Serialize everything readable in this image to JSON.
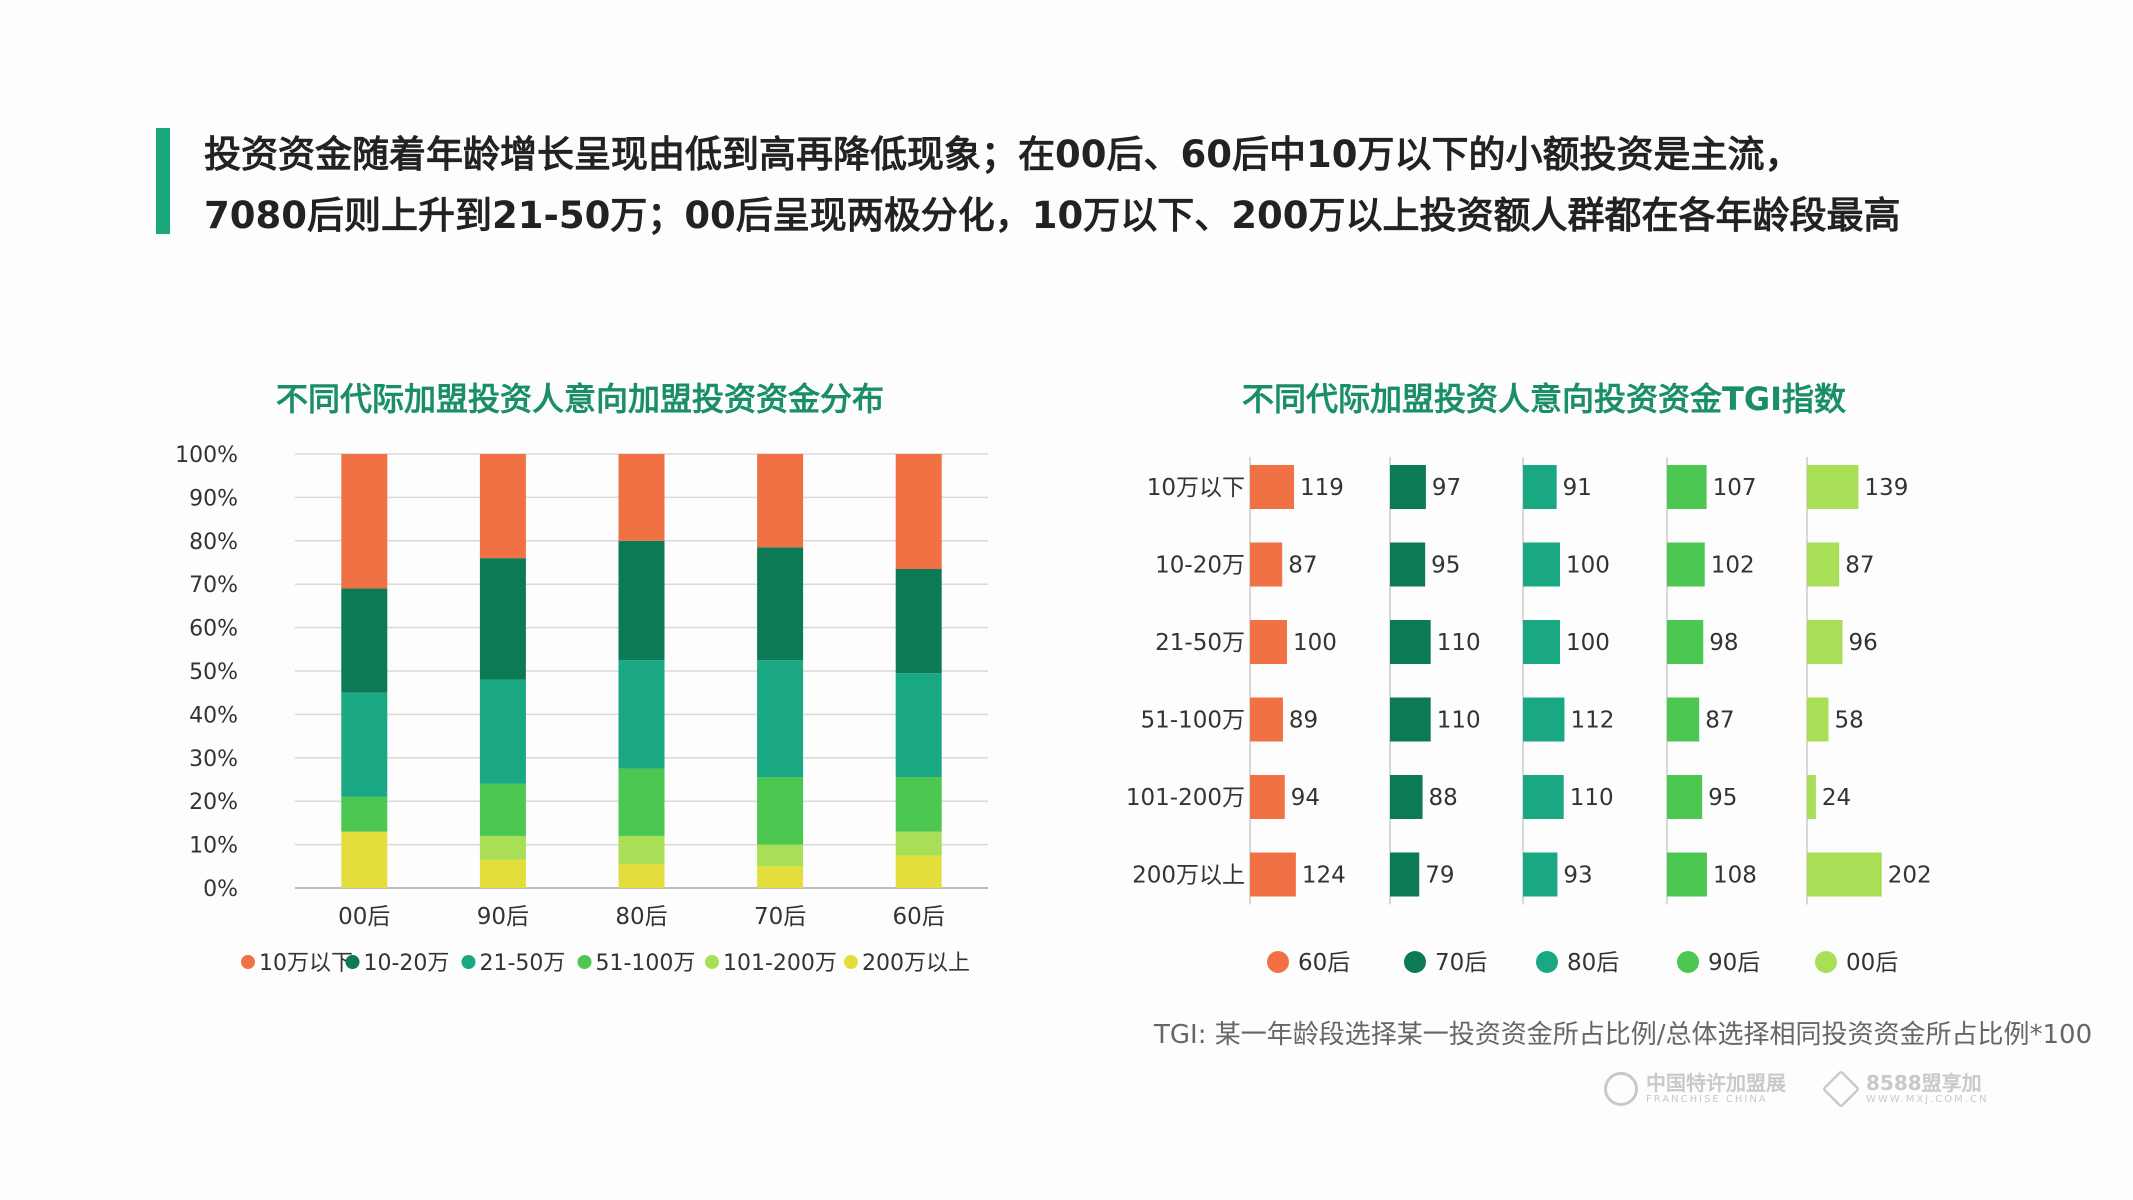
{
  "headline": {
    "line1": "投资资金随着年龄增长呈现由低到高再降低现象；在00后、60后中10万以下的小额投资是主流，",
    "line2": "7080后则上升到21-50万；00后呈现两极分化，10万以下、200万以上投资额人群都在各年龄段最高"
  },
  "footnote": "TGI: 某一年龄段选择某一投资资金所占比例/总体选择相同投资资金所占比例*100",
  "logos": {
    "left": {
      "cn": "中国特许加盟展",
      "en": "FRANCHISE CHINA"
    },
    "right": {
      "cn": "8588盟享加",
      "en": "WWW.MXJ.COM.CN"
    }
  },
  "colors": {
    "10万以下": "#f07144",
    "10-20万": "#0b7a55",
    "21-50万": "#19a881",
    "51-100万": "#4cc751",
    "101-200万": "#a8df57",
    "200万以上": "#e3de3b",
    "title": "#1a8f66"
  },
  "chart_data": [
    {
      "type": "bar",
      "stacked": true,
      "title": "不同代际加盟投资人意向加盟投资资金分布",
      "categories": [
        "00后",
        "90后",
        "80后",
        "70后",
        "60后"
      ],
      "ylim": [
        0,
        100
      ],
      "yticks": [
        "0%",
        "10%",
        "20%",
        "30%",
        "40%",
        "50%",
        "60%",
        "70%",
        "80%",
        "90%",
        "100%"
      ],
      "grid": true,
      "legend": "bottom",
      "series": [
        {
          "name": "200万以上",
          "values": [
            13,
            6.5,
            5.5,
            5,
            7.5
          ]
        },
        {
          "name": "101-200万",
          "values": [
            0,
            5.5,
            6.5,
            5,
            5.5
          ]
        },
        {
          "name": "51-100万",
          "values": [
            8,
            12,
            15.5,
            15.5,
            12.5
          ]
        },
        {
          "name": "21-50万",
          "values": [
            24,
            24,
            25,
            27,
            24
          ]
        },
        {
          "name": "10-20万",
          "values": [
            24,
            28,
            27.5,
            26,
            24
          ]
        },
        {
          "name": "10万以下",
          "values": [
            31,
            24,
            20,
            21.5,
            26.5
          ]
        }
      ],
      "legend_order": [
        "10万以下",
        "10-20万",
        "21-50万",
        "51-100万",
        "101-200万",
        "200万以上"
      ]
    },
    {
      "type": "bar",
      "orientation": "horizontal",
      "title": "不同代际加盟投资人意向投资资金TGI指数",
      "categories": [
        "10万以下",
        "10-20万",
        "21-50万",
        "51-100万",
        "101-200万",
        "200万以上"
      ],
      "legend": "bottom",
      "series": [
        {
          "name": "60后",
          "color": "#f07144",
          "values": [
            119,
            87,
            100,
            89,
            94,
            124
          ]
        },
        {
          "name": "70后",
          "color": "#0b7a55",
          "values": [
            97,
            95,
            110,
            110,
            88,
            79
          ]
        },
        {
          "name": "80后",
          "color": "#19a881",
          "values": [
            91,
            100,
            100,
            112,
            110,
            93
          ]
        },
        {
          "name": "90后",
          "color": "#4cc751",
          "values": [
            107,
            102,
            98,
            87,
            95,
            108
          ]
        },
        {
          "name": "00后",
          "color": "#a8df57",
          "values": [
            139,
            87,
            96,
            58,
            24,
            202
          ]
        }
      ]
    }
  ]
}
